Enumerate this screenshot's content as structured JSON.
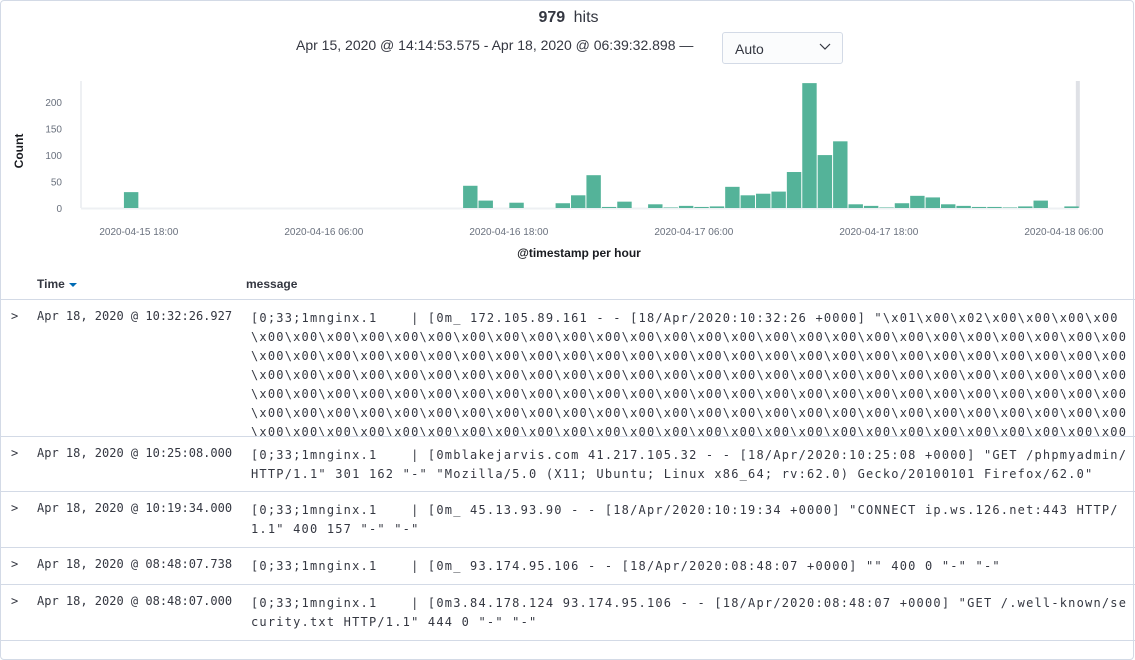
{
  "header": {
    "hits_count": "979",
    "hits_label": "hits",
    "time_range": "Apr 15, 2020 @ 14:14:53.575 - Apr 18, 2020 @ 06:39:32.898 —",
    "interval": "Auto"
  },
  "chart_data": {
    "type": "bar",
    "title": "",
    "xlabel": "@timestamp per hour",
    "ylabel": "Count",
    "ylim": [
      0,
      240
    ],
    "yticks": [
      "0",
      "50",
      "100",
      "150",
      "200"
    ],
    "xlim": [
      "2020-04-15T14:14:53",
      "2020-04-18T06:39:32"
    ],
    "xticks": [
      "2020-04-15 18:00",
      "2020-04-16 06:00",
      "2020-04-16 18:00",
      "2020-04-17 06:00",
      "2020-04-17 18:00",
      "2020-04-18 06:00"
    ],
    "x": [
      "2020-04-15 17:00",
      "2020-04-16 15:00",
      "2020-04-16 16:00",
      "2020-04-16 18:00",
      "2020-04-16 21:00",
      "2020-04-16 22:00",
      "2020-04-16 23:00",
      "2020-04-17 00:00",
      "2020-04-17 01:00",
      "2020-04-17 03:00",
      "2020-04-17 04:00",
      "2020-04-17 05:00",
      "2020-04-17 06:00",
      "2020-04-17 07:00",
      "2020-04-17 08:00",
      "2020-04-17 09:00",
      "2020-04-17 10:00",
      "2020-04-17 11:00",
      "2020-04-17 12:00",
      "2020-04-17 13:00",
      "2020-04-17 14:00",
      "2020-04-17 15:00",
      "2020-04-17 16:00",
      "2020-04-17 17:00",
      "2020-04-17 18:00",
      "2020-04-17 19:00",
      "2020-04-17 20:00",
      "2020-04-17 21:00",
      "2020-04-17 22:00",
      "2020-04-17 23:00",
      "2020-04-18 00:00",
      "2020-04-18 01:00",
      "2020-04-18 02:00",
      "2020-04-18 03:00",
      "2020-04-18 04:00",
      "2020-04-18 06:00"
    ],
    "values": [
      30,
      42,
      14,
      10,
      9,
      24,
      62,
      2,
      12,
      7,
      1,
      4,
      2,
      3,
      40,
      24,
      27,
      31,
      68,
      236,
      100,
      126,
      7,
      4,
      1,
      9,
      23,
      20,
      7,
      4,
      2,
      2,
      1,
      3,
      14,
      3
    ],
    "color": "#54b399"
  },
  "table": {
    "columns": {
      "time": "Time",
      "message": "message"
    },
    "rows": [
      {
        "time": "Apr 18, 2020 @ 10:32:26.927",
        "message": "[0;33;1mnginx.1    | [0m_ 172.105.89.161 - - [18/Apr/2020:10:32:26 +0000] \"\\x01\\x00\\x02\\x00\\x00\\x00\\x00\\x00\\x00\\x00\\x00\\x00\\x00\\x00\\x00\\x00\\x00\\x00\\x00\\x00\\x00\\x00\\x00\\x00\\x00\\x00\\x00\\x00\\x00\\x00\\x00\\x00\\x00\\x00\\x00\\x00\\x00\\x00\\x00\\x00\\x00\\x00\\x00\\x00\\x00\\x00\\x00\\x00\\x00\\x00\\x00\\x00\\x00\\x00\\x00\\x00\\x00\\x00\\x00\\x00\\x00\\x00\\x00\\x00\\x00\\x00\\x00\\x00\\x00\\x00\\x00\\x00\\x00\\x00\\x00\\x00\\x00\\x00\\x00\\x00\\x00\\x00\\x00\\x00\\x00\\x00\\x00\\x00\\x00\\x00\\x00\\x00\\x00\\x00\\x00\\x00\\x00\\x00\\x00\\x00\\x00\\x00\\x00\\x00\\x00\\x00\\x00\\x00\\x00\\x00\\x00\\x00\\x00\\x00\\x00\\x00\\x00\\x00\\x00\\x00\\x00\\x00\\x00\\x00\\x00\\x00\\x00\\x00\\x00\\x00\\x00\\x00\\x00\\x00\\x00\\x00\\x00\\x00\\x00\\x00\\x00\\x00\\x00\\x00\\x00\\x00\\x00\\x00\\x00\\x00\\x00\\x00\\x00\\x00\\x00\\x00\\x00\\x00\\x00\\x00\\x00\\x00\\x00\\x00\\x00\\x00\\x00\\x00\\x00\\x00\\x00\\x00\\x00\\x00\\x00\\x00\\x00\\x00\\x00\\x00\\x00\\x00\\x00\\x00\\x00\\x00\\x00\\x00\\x00\\x00\\x00\\x00\\x00\\x00"
      },
      {
        "time": "Apr 18, 2020 @ 10:25:08.000",
        "message": "[0;33;1mnginx.1    | [0mblakejarvis.com 41.217.105.32 - - [18/Apr/2020:10:25:08 +0000] \"GET /phpmyadmin/ HTTP/1.1\" 301 162 \"-\" \"Mozilla/5.0 (X11; Ubuntu; Linux x86_64; rv:62.0) Gecko/20100101 Firefox/62.0\""
      },
      {
        "time": "Apr 18, 2020 @ 10:19:34.000",
        "message": "[0;33;1mnginx.1    | [0m_ 45.13.93.90 - - [18/Apr/2020:10:19:34 +0000] \"CONNECT ip.ws.126.net:443 HTTP/1.1\" 400 157 \"-\" \"-\""
      },
      {
        "time": "Apr 18, 2020 @ 08:48:07.738",
        "message": "[0;33;1mnginx.1    | [0m_ 93.174.95.106 - - [18/Apr/2020:08:48:07 +0000] \"\" 400 0 \"-\" \"-\""
      },
      {
        "time": "Apr 18, 2020 @ 08:48:07.000",
        "message": "[0;33;1mnginx.1    | [0m3.84.178.124 93.174.95.106 - - [18/Apr/2020:08:48:07 +0000] \"GET /.well-known/security.txt HTTP/1.1\" 444 0 \"-\" \"-\""
      }
    ]
  }
}
